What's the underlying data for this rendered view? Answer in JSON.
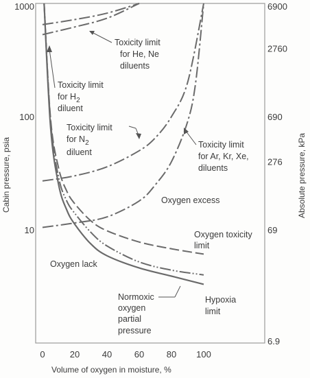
{
  "chart_data": {
    "type": "line",
    "xlabel": "Volume of oxygen in moisture, %",
    "ylabel": "Cabin pressure, psia",
    "ylabel_right": "Absolute pressure, kPa",
    "xlim": [
      0,
      120
    ],
    "ylim": [
      1,
      1000
    ],
    "y_scale": "log",
    "x_ticks": [
      "0",
      "20",
      "40",
      "60",
      "80",
      "100"
    ],
    "x_tick_values": [
      0,
      20,
      40,
      60,
      80,
      100
    ],
    "y_ticks": [
      "10",
      "100",
      "1000"
    ],
    "y_tick_values": [
      10,
      100,
      1000
    ],
    "y_ticks_right": [
      "6.9",
      "69",
      "276",
      "690",
      "2760",
      "6900"
    ],
    "y_ticks_right_values": [
      1,
      10,
      40,
      100,
      400,
      1000
    ],
    "series": [
      {
        "id": "toxicity-he-ne",
        "style": "dashdot",
        "x": [
          0,
          20,
          40,
          60
        ],
        "y": [
          530,
          620,
          740,
          1000
        ]
      },
      {
        "id": "toxicity-h2",
        "style": "dashdot",
        "x": [
          0,
          20,
          40,
          60
        ],
        "y": [
          650,
          720,
          820,
          1000
        ]
      },
      {
        "id": "toxicity-n2",
        "style": "dashdot",
        "x": [
          0,
          20,
          40,
          60,
          70,
          80,
          90,
          100
        ],
        "y": [
          27,
          30,
          36,
          50,
          65,
          100,
          200,
          1000
        ]
      },
      {
        "id": "toxicity-ar-kr-xe",
        "style": "dashdot",
        "x": [
          0,
          20,
          40,
          60,
          70,
          80,
          90,
          95,
          100
        ],
        "y": [
          10.5,
          11.5,
          13,
          18,
          25,
          40,
          90,
          200,
          1000
        ]
      },
      {
        "id": "oxygen-toxicity-limit",
        "style": "dashed",
        "x": [
          1,
          5,
          10,
          15,
          20,
          30,
          40,
          60,
          80,
          100
        ],
        "y": [
          1000,
          95,
          35,
          22,
          17,
          12,
          9.8,
          7.8,
          6.8,
          6.1
        ]
      },
      {
        "id": "normoxic-oxygen-partial-pressure",
        "style": "dash-dot-dot",
        "x": [
          1,
          5,
          10,
          15,
          20,
          30,
          40,
          60,
          80,
          100
        ],
        "y": [
          1000,
          90,
          29,
          18,
          14,
          9.5,
          7.2,
          5.2,
          4.4,
          4
        ]
      },
      {
        "id": "hypoxia-limit",
        "style": "solid",
        "x": [
          1,
          5,
          10,
          15,
          20,
          30,
          40,
          60,
          80,
          100
        ],
        "y": [
          1000,
          80,
          25,
          15,
          11.2,
          7.5,
          5.9,
          4.6,
          3.9,
          3.3
        ]
      }
    ],
    "annotations": [
      {
        "lines": [
          "Toxicity limit",
          "for He, Ne",
          "diluents"
        ]
      },
      {
        "lines": [
          "Toxicity limit",
          "for H",
          "diluent"
        ],
        "subscript": "2"
      },
      {
        "lines": [
          "Toxicity limit",
          "for N",
          "diluent"
        ],
        "subscript": "2"
      },
      {
        "lines": [
          "Toxicity limit",
          "for Ar, Kr, Xe,",
          "diluents"
        ]
      },
      {
        "lines": [
          "Oxygen excess"
        ]
      },
      {
        "lines": [
          "Oxygen toxicity",
          "limit"
        ]
      },
      {
        "lines": [
          "Oxygen lack"
        ]
      },
      {
        "lines": [
          "Normoxic",
          "oxygen",
          "partial",
          "pressure"
        ]
      },
      {
        "lines": [
          "Hypoxia",
          "limit"
        ]
      }
    ]
  }
}
